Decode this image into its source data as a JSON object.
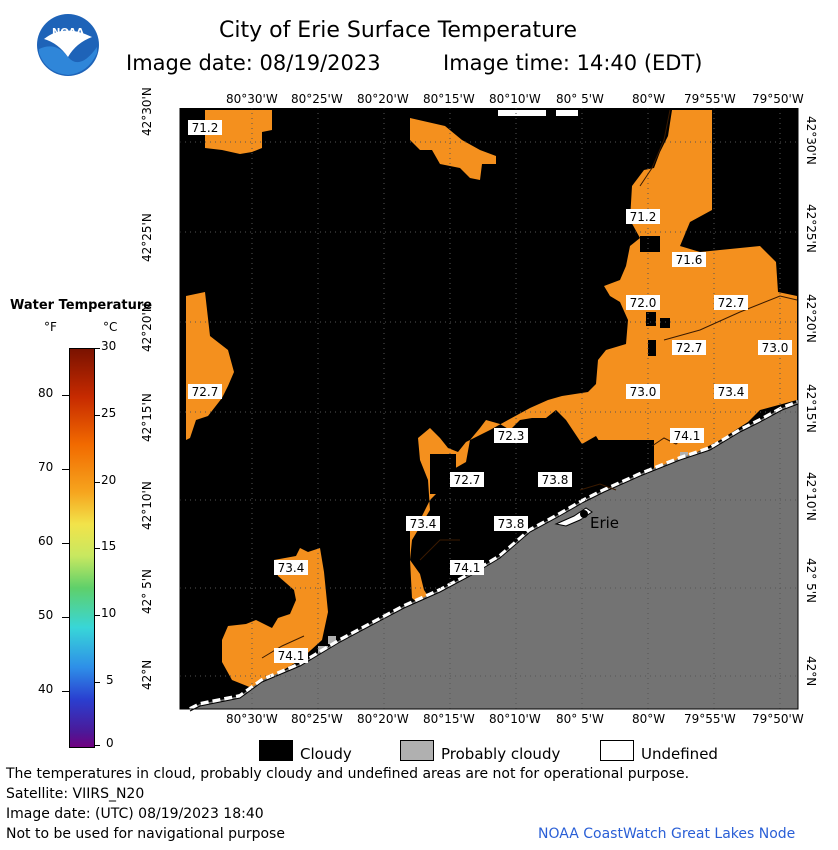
{
  "header": {
    "title": "City of Erie Surface Temperature",
    "image_date": "Image date: 08/19/2023",
    "image_time": "Image time: 14:40 (EDT)",
    "logo_text": "NOAA"
  },
  "legend": {
    "title": "Water Temperature",
    "unit_f": "°F",
    "unit_c": "°C",
    "f_ticks": [
      "80",
      "70",
      "60",
      "50",
      "40"
    ],
    "c_ticks": [
      "30",
      "25",
      "20",
      "15",
      "10",
      "5",
      "0"
    ]
  },
  "axes": {
    "lon_labels": [
      "80°30'W",
      "80°25'W",
      "80°20'W",
      "80°15'W",
      "80°10'W",
      "80° 5'W",
      "80°W",
      "79°55'W",
      "79°50'W"
    ],
    "lat_labels": [
      "42°30'N",
      "42°25'N",
      "42°20'N",
      "42°15'N",
      "42°10'N",
      "42° 5'N",
      "42°N"
    ]
  },
  "map": {
    "city_label": "Erie",
    "temperature_labels": [
      "71.2",
      "71.2",
      "71.6",
      "72.0",
      "72.7",
      "72.7",
      "73.0",
      "72.7",
      "73.0",
      "73.4",
      "74.1",
      "72.3",
      "72.7",
      "73.8",
      "73.4",
      "73.8",
      "74.1",
      "73.4",
      "74.1"
    ],
    "colors": {
      "cloud": "#000000",
      "land": "#737373",
      "probably_cloudy": "#b0b0b0",
      "water": "#f4901e",
      "water_warm": "#f08010"
    }
  },
  "key": {
    "cloudy": "Cloudy",
    "probably_cloudy": "Probably cloudy",
    "undefined": "Undefined"
  },
  "footer": {
    "disclaimer": "The temperatures in cloud, probably cloudy and undefined areas are not for operational purpose.",
    "satellite": "Satellite: VIIRS_N20",
    "utc_date": "Image date: (UTC) 08/19/2023  18:40",
    "nav_warning": "Not to be used for navigational purpose",
    "credit": "NOAA CoastWatch Great Lakes Node"
  }
}
